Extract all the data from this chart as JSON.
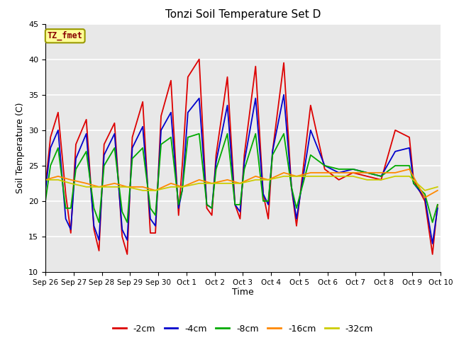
{
  "title": "Tonzi Soil Temperature Set D",
  "xlabel": "Time",
  "ylabel": "Soil Temperature (C)",
  "ylim": [
    10,
    45
  ],
  "xlim": [
    0,
    14
  ],
  "fig_bg_color": "#ffffff",
  "plot_bg_color": "#e8e8e8",
  "annotation_label": "TZ_fmet",
  "annotation_box_color": "#ffff99",
  "annotation_box_edge": "#999900",
  "annotation_text_color": "#880000",
  "xtick_labels": [
    "Sep 26",
    "Sep 27",
    "Sep 28",
    "Sep 29",
    "Sep 30",
    "Oct 1",
    "Oct 2",
    "Oct 3",
    "Oct 4",
    "Oct 5",
    "Oct 6",
    "Oct 7",
    "Oct 8",
    "Oct 9",
    "Oct 10"
  ],
  "xtick_positions": [
    0,
    1,
    2,
    3,
    4,
    5,
    6,
    7,
    8,
    9,
    10,
    11,
    12,
    13,
    14
  ],
  "ytick_positions": [
    10,
    15,
    20,
    25,
    30,
    35,
    40,
    45
  ],
  "series": {
    "neg2cm": {
      "color": "#dd0000",
      "label": "-2cm",
      "x": [
        0.0,
        0.18,
        0.45,
        0.72,
        0.9,
        1.08,
        1.45,
        1.72,
        1.9,
        2.08,
        2.45,
        2.72,
        2.9,
        3.08,
        3.45,
        3.72,
        3.9,
        4.1,
        4.45,
        4.72,
        4.85,
        5.05,
        5.45,
        5.72,
        5.9,
        6.05,
        6.45,
        6.72,
        6.9,
        7.05,
        7.45,
        7.72,
        7.9,
        8.05,
        8.45,
        8.72,
        8.9,
        9.4,
        9.9,
        10.4,
        10.9,
        11.4,
        11.9,
        12.4,
        12.9,
        13.05,
        13.45,
        13.72,
        13.9
      ],
      "y": [
        22.0,
        29.0,
        32.5,
        21.0,
        15.5,
        28.0,
        31.5,
        16.0,
        13.0,
        28.0,
        31.0,
        15.0,
        12.5,
        29.0,
        34.0,
        15.5,
        15.5,
        32.0,
        37.0,
        18.0,
        25.0,
        37.5,
        40.0,
        19.0,
        18.0,
        26.5,
        37.5,
        19.5,
        17.5,
        26.5,
        39.0,
        21.0,
        17.5,
        27.0,
        39.5,
        22.0,
        16.5,
        33.5,
        24.5,
        23.0,
        24.0,
        23.5,
        23.0,
        30.0,
        29.0,
        23.0,
        20.0,
        12.5,
        19.5
      ]
    },
    "neg4cm": {
      "color": "#0000cc",
      "label": "-4cm",
      "x": [
        0.0,
        0.18,
        0.45,
        0.72,
        0.9,
        1.08,
        1.45,
        1.72,
        1.9,
        2.08,
        2.45,
        2.72,
        2.9,
        3.08,
        3.45,
        3.72,
        3.9,
        4.1,
        4.45,
        4.72,
        4.85,
        5.05,
        5.45,
        5.72,
        5.9,
        6.05,
        6.45,
        6.72,
        6.9,
        7.05,
        7.45,
        7.72,
        7.9,
        8.05,
        8.45,
        8.72,
        8.9,
        9.4,
        9.9,
        10.4,
        10.9,
        11.4,
        11.9,
        12.4,
        12.9,
        13.05,
        13.45,
        13.72,
        13.9
      ],
      "y": [
        21.5,
        27.5,
        30.0,
        17.5,
        16.0,
        26.0,
        29.5,
        16.5,
        14.5,
        26.5,
        29.5,
        16.0,
        14.5,
        27.5,
        30.5,
        17.5,
        16.5,
        30.0,
        32.5,
        19.0,
        21.5,
        32.5,
        34.5,
        19.5,
        19.0,
        25.5,
        33.5,
        19.5,
        18.5,
        25.5,
        34.5,
        21.0,
        19.5,
        27.0,
        35.0,
        22.0,
        17.5,
        30.0,
        25.0,
        24.0,
        24.5,
        24.0,
        23.5,
        27.0,
        27.5,
        22.5,
        20.5,
        14.0,
        19.0
      ]
    },
    "neg8cm": {
      "color": "#00aa00",
      "label": "-8cm",
      "x": [
        0.0,
        0.18,
        0.45,
        0.72,
        0.9,
        1.08,
        1.45,
        1.72,
        1.9,
        2.08,
        2.45,
        2.72,
        2.9,
        3.08,
        3.45,
        3.72,
        3.9,
        4.1,
        4.45,
        4.72,
        4.85,
        5.05,
        5.45,
        5.72,
        5.9,
        6.05,
        6.45,
        6.72,
        6.9,
        7.05,
        7.45,
        7.72,
        7.9,
        8.05,
        8.45,
        8.72,
        8.9,
        9.4,
        9.9,
        10.4,
        10.9,
        11.4,
        11.9,
        12.4,
        12.9,
        13.05,
        13.45,
        13.72,
        13.9
      ],
      "y": [
        20.0,
        25.0,
        27.5,
        19.0,
        19.0,
        24.5,
        27.0,
        19.0,
        17.0,
        25.0,
        27.5,
        18.5,
        17.0,
        26.0,
        27.5,
        19.0,
        18.0,
        28.0,
        29.0,
        19.5,
        21.5,
        29.0,
        29.5,
        19.5,
        19.0,
        24.5,
        29.5,
        19.5,
        19.5,
        24.5,
        29.5,
        20.0,
        20.0,
        26.5,
        29.5,
        22.0,
        19.0,
        26.5,
        25.0,
        24.5,
        24.5,
        24.0,
        23.5,
        25.0,
        25.0,
        22.5,
        21.0,
        17.0,
        19.5
      ]
    },
    "neg16cm": {
      "color": "#ff8800",
      "label": "-16cm",
      "x": [
        0.0,
        0.45,
        0.9,
        1.45,
        1.9,
        2.45,
        2.9,
        3.45,
        3.9,
        4.45,
        4.85,
        5.45,
        5.9,
        6.45,
        6.9,
        7.45,
        7.9,
        8.45,
        8.9,
        9.4,
        9.9,
        10.4,
        10.9,
        11.4,
        11.9,
        12.4,
        12.9,
        13.45,
        13.9
      ],
      "y": [
        23.0,
        23.5,
        23.0,
        22.5,
        22.0,
        22.5,
        22.0,
        22.0,
        21.5,
        22.5,
        22.0,
        23.0,
        22.5,
        23.0,
        22.5,
        23.5,
        23.0,
        24.0,
        23.5,
        24.0,
        24.0,
        24.0,
        24.0,
        24.0,
        24.0,
        24.0,
        24.5,
        20.5,
        21.5
      ]
    },
    "neg32cm": {
      "color": "#cccc00",
      "label": "-32cm",
      "x": [
        0.0,
        0.45,
        0.9,
        1.45,
        1.9,
        2.45,
        2.9,
        3.45,
        3.9,
        4.45,
        4.85,
        5.45,
        5.9,
        6.45,
        6.9,
        7.45,
        7.9,
        8.45,
        8.9,
        9.4,
        9.9,
        10.4,
        10.9,
        11.4,
        11.9,
        12.4,
        12.9,
        13.45,
        13.9
      ],
      "y": [
        23.0,
        23.0,
        22.5,
        22.0,
        22.0,
        22.0,
        22.0,
        21.5,
        21.5,
        22.0,
        22.0,
        22.5,
        22.5,
        22.5,
        22.5,
        23.0,
        23.0,
        23.5,
        23.5,
        23.5,
        23.5,
        23.5,
        23.5,
        23.0,
        23.0,
        23.5,
        23.5,
        21.5,
        22.0
      ]
    }
  }
}
